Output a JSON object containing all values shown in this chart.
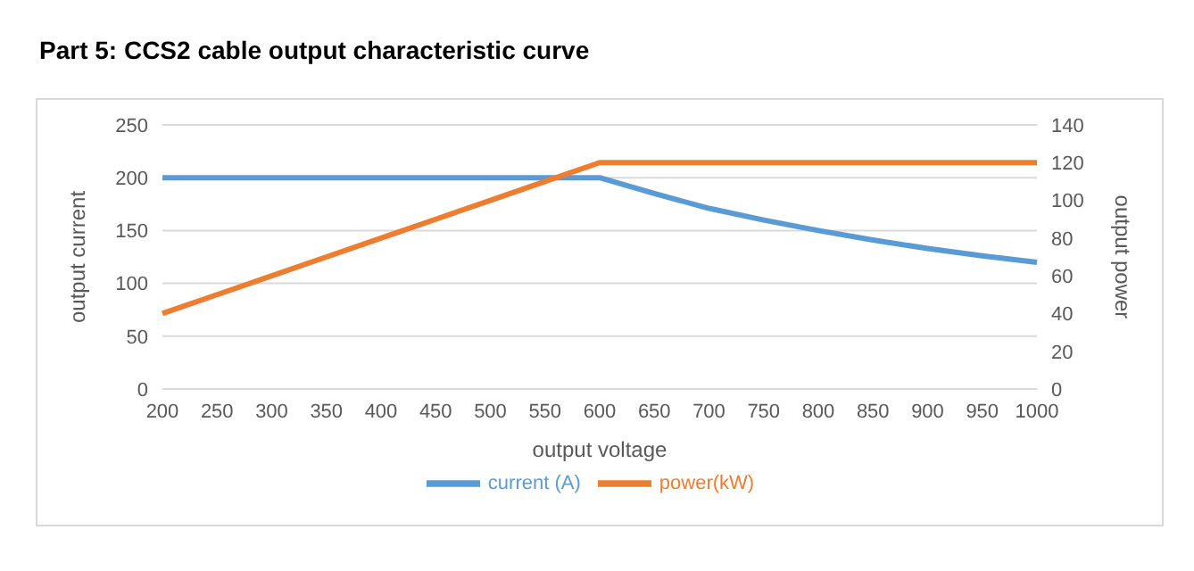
{
  "chart_data": {
    "type": "line",
    "title": "Part 5: CCS2 cable output characteristic curve",
    "xlabel": "output voltage",
    "ylabel": "output current",
    "y2label": "output power",
    "categories": [
      "200",
      "250",
      "300",
      "350",
      "400",
      "450",
      "500",
      "550",
      "600",
      "650",
      "700",
      "750",
      "800",
      "850",
      "900",
      "950",
      "1000"
    ],
    "series": [
      {
        "name": "current (A)",
        "color": "#5b9bd5",
        "values": [
          200,
          200,
          200,
          200,
          200,
          200,
          200,
          200,
          200,
          185,
          171,
          160,
          150,
          141,
          133,
          126,
          120
        ]
      },
      {
        "name": "power(kW)",
        "color": "#ed7d31",
        "axis": "y2",
        "values": [
          40,
          50,
          60,
          70,
          80,
          90,
          100,
          110,
          120,
          120,
          120,
          120,
          120,
          120,
          120,
          120,
          120
        ]
      }
    ],
    "ylim": [
      0,
      250
    ],
    "yticks": [
      0,
      50,
      100,
      150,
      200,
      250
    ],
    "y2lim": [
      0,
      140
    ],
    "y2ticks": [
      0,
      20,
      40,
      60,
      80,
      100,
      120,
      140
    ],
    "grid": "y",
    "legend": "bottom",
    "marker": "none",
    "line_style": "solid"
  }
}
